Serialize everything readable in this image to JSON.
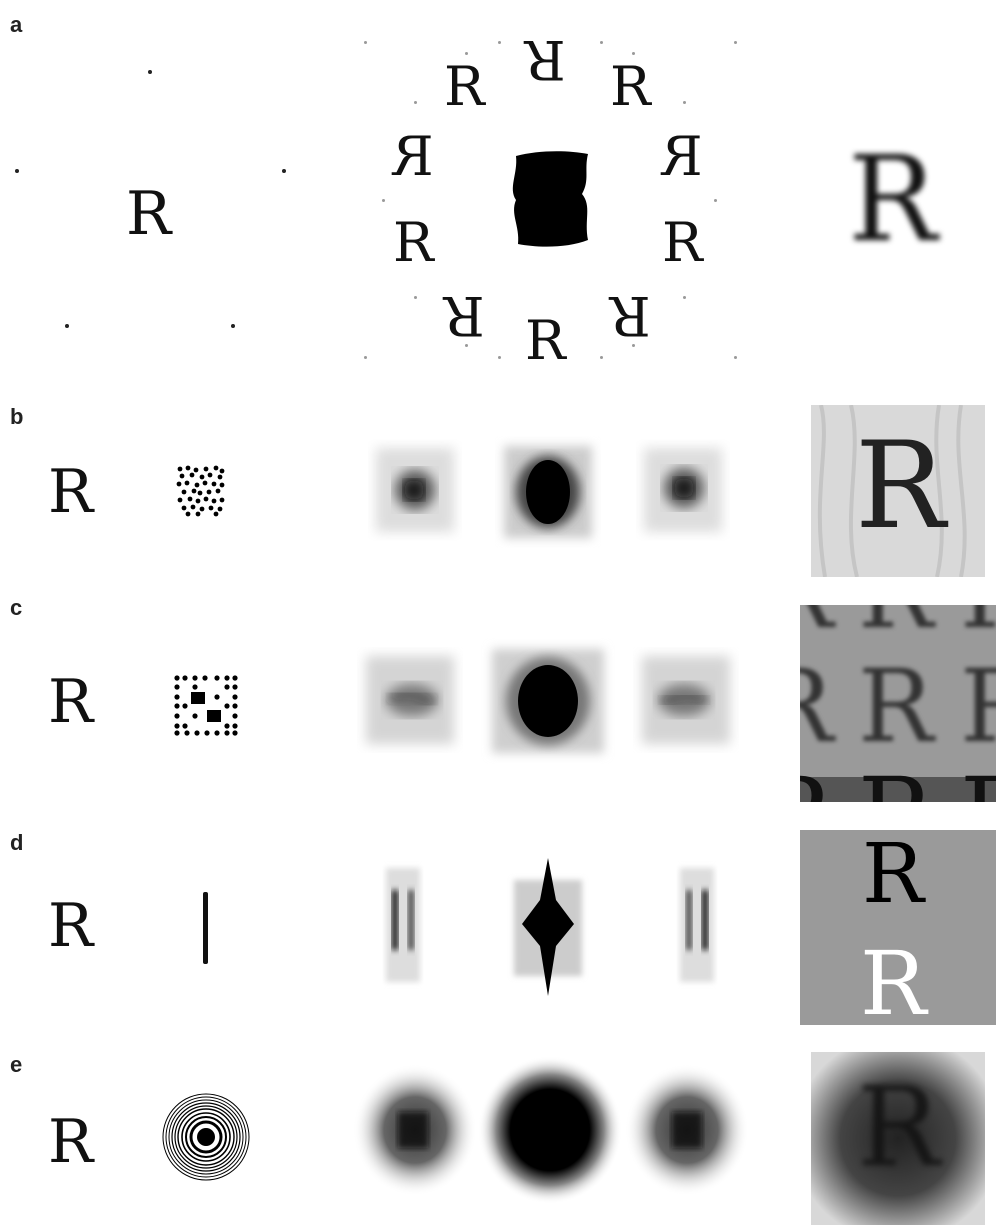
{
  "panels": {
    "a": "a",
    "b": "b",
    "c": "c",
    "d": "d",
    "e": "e"
  },
  "letter": "R",
  "colors": {
    "ink": "#111111",
    "panel_gray": "#9a9a9a",
    "light_gray": "#c8c8c8",
    "background": "#ffffff"
  }
}
